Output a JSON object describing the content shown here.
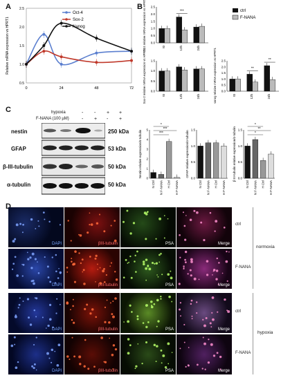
{
  "panels": {
    "a": "A",
    "b": "B",
    "c": "C",
    "d": "D"
  },
  "chart_data": [
    {
      "type": "line",
      "ylabel": "Relative mRNA expression vs HPRT1",
      "x": [
        0,
        12,
        24,
        48,
        72
      ],
      "xticks": [
        "0",
        "24",
        "48",
        "72"
      ],
      "ylim": [
        0.5,
        2.5
      ],
      "yticks": [
        "0.5",
        "1.0",
        "1.5",
        "2.0",
        "2.5"
      ],
      "series": [
        {
          "name": "Oct-4",
          "color": "#5b7fcf",
          "values": [
            1.0,
            1.8,
            1.0,
            1.3,
            1.35
          ]
        },
        {
          "name": "Sox-2",
          "color": "#c0392b",
          "values": [
            1.0,
            1.35,
            1.2,
            1.05,
            1.1
          ]
        },
        {
          "name": "Nanog",
          "color": "#111111",
          "values": [
            1.0,
            1.5,
            2.1,
            1.7,
            1.35
          ]
        }
      ]
    },
    {
      "type": "bar",
      "legend": [
        "ctrl",
        "F-NANA"
      ],
      "subplots": [
        {
          "ylabel": "Oct4 relative mRNA expression vs HPRT1",
          "categories": [
            "t0",
            "12h",
            "24h"
          ],
          "ctrl": [
            1.0,
            1.8,
            1.1
          ],
          "fnana": [
            1.0,
            0.9,
            1.15
          ],
          "ylim": [
            0,
            2.5
          ],
          "yticks": [
            "0.0",
            "0.5",
            "1.0",
            "1.5",
            "2.0",
            "2.5"
          ],
          "sig": [
            "",
            "***",
            ""
          ]
        },
        {
          "ylabel": "Sox-2 relative mRNA expression vs HPRT1",
          "categories": [
            "t0",
            "12h",
            "24h"
          ],
          "ctrl": [
            1.0,
            1.2,
            1.1
          ],
          "fnana": [
            1.0,
            1.05,
            1.1
          ],
          "ylim": [
            0,
            1.5
          ],
          "yticks": [
            "0.0",
            "0.5",
            "1.0",
            "1.5"
          ],
          "sig": [
            "",
            "",
            ""
          ]
        },
        {
          "ylabel": "Nanog relative mRNA expression vs HPRT1",
          "categories": [
            "t0",
            "12h",
            "24h"
          ],
          "ctrl": [
            1.0,
            1.4,
            2.1
          ],
          "fnana": [
            1.0,
            0.75,
            0.95
          ],
          "ylim": [
            0,
            2.5
          ],
          "yticks": [
            "0.0",
            "0.5",
            "1.0",
            "1.5",
            "2.0",
            "2.5"
          ],
          "sig": [
            "",
            "**",
            "**"
          ]
        }
      ]
    },
    {
      "type": "bar",
      "subplots": [
        {
          "ylabel": "Nestin relative expression/α-tubulin",
          "categories": [
            "N Ctrl",
            "N F-NANA",
            "H Ctrl",
            "H F-NANA"
          ],
          "values": [
            0.6,
            0.4,
            3.8,
            0.1
          ],
          "ylim": [
            0,
            5
          ],
          "yticks": [
            "0",
            "1",
            "2",
            "3",
            "4",
            "5"
          ],
          "sig": [
            "*",
            "***",
            "***"
          ]
        },
        {
          "ylabel": "GFAP relative expression/α-tubulin",
          "categories": [
            "N Ctrl",
            "N F-NANA",
            "H Ctrl",
            "H F-NANA"
          ],
          "values": [
            1.0,
            1.1,
            1.1,
            1.0
          ],
          "ylim": [
            0,
            1.5
          ],
          "yticks": [
            "0.0",
            "0.5",
            "1.0",
            "1.5"
          ],
          "sig": []
        },
        {
          "ylabel": "β III-tubulin relative expression/α-tubulin",
          "categories": [
            "N Ctrl",
            "N F-NANA",
            "H Ctrl",
            "H F-NANA"
          ],
          "values": [
            1.0,
            1.2,
            0.55,
            0.75
          ],
          "ylim": [
            0,
            1.5
          ],
          "yticks": [
            "0.0",
            "0.5",
            "1.0",
            "1.5"
          ],
          "sig": [
            "*",
            "**",
            "*"
          ]
        }
      ]
    }
  ],
  "blot": {
    "hypoxia_label": "hypoxia",
    "treat_label": "F-NANA (100 µM)",
    "hypoxia_signs": [
      "-",
      "-",
      "+",
      "+"
    ],
    "treat_signs": [
      "-",
      "+",
      "-",
      "+"
    ],
    "proteins": [
      "nestin",
      "GFAP",
      "β-III-tubulin",
      "α-tubulin"
    ],
    "kda": [
      "250 kDa",
      "53 kDa",
      "50 kDa",
      "50 kDa"
    ]
  },
  "micro": {
    "columns": [
      "DAPI",
      "βIII-tubulin",
      "PSA",
      "Merge"
    ],
    "rows": [
      "ctrl",
      "F-NANA",
      "ctrl",
      "F-NANA"
    ],
    "groups": [
      "normoxia",
      "hypoxia"
    ]
  }
}
